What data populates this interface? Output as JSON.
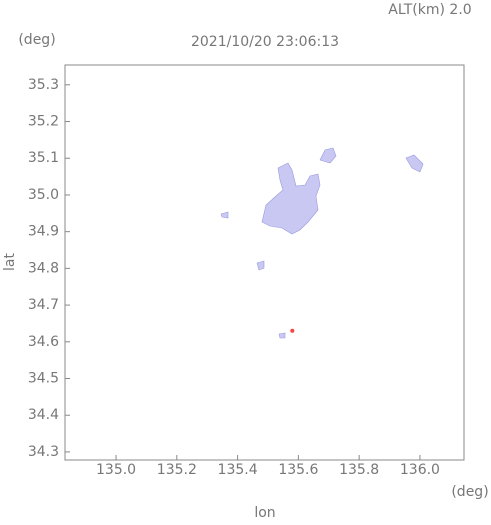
{
  "chart_data": {
    "type": "scatter",
    "title": "2021/10/20 23:06:13",
    "annotation": "ALT(km) 2.0",
    "xlabel": "lon",
    "ylabel": "lat",
    "x_unit": "(deg)",
    "y_unit": "(deg)",
    "xlim": [
      134.832,
      136.145
    ],
    "ylim": [
      34.278,
      35.354
    ],
    "xticks": [
      {
        "value": 135,
        "label": "135.0"
      },
      135.2,
      135.4,
      135.6,
      135.8,
      {
        "value": 136,
        "label": "136.0"
      }
    ],
    "yticks": [
      34.3,
      34.4,
      34.5,
      34.6,
      34.7,
      34.8,
      34.9,
      {
        "value": 35,
        "label": "35.0"
      },
      35.1,
      35.2,
      35.3
    ],
    "series": [
      {
        "color": "#ff4040",
        "x": [
          135.58
        ],
        "values": [
          34.63
        ]
      }
    ]
  }
}
